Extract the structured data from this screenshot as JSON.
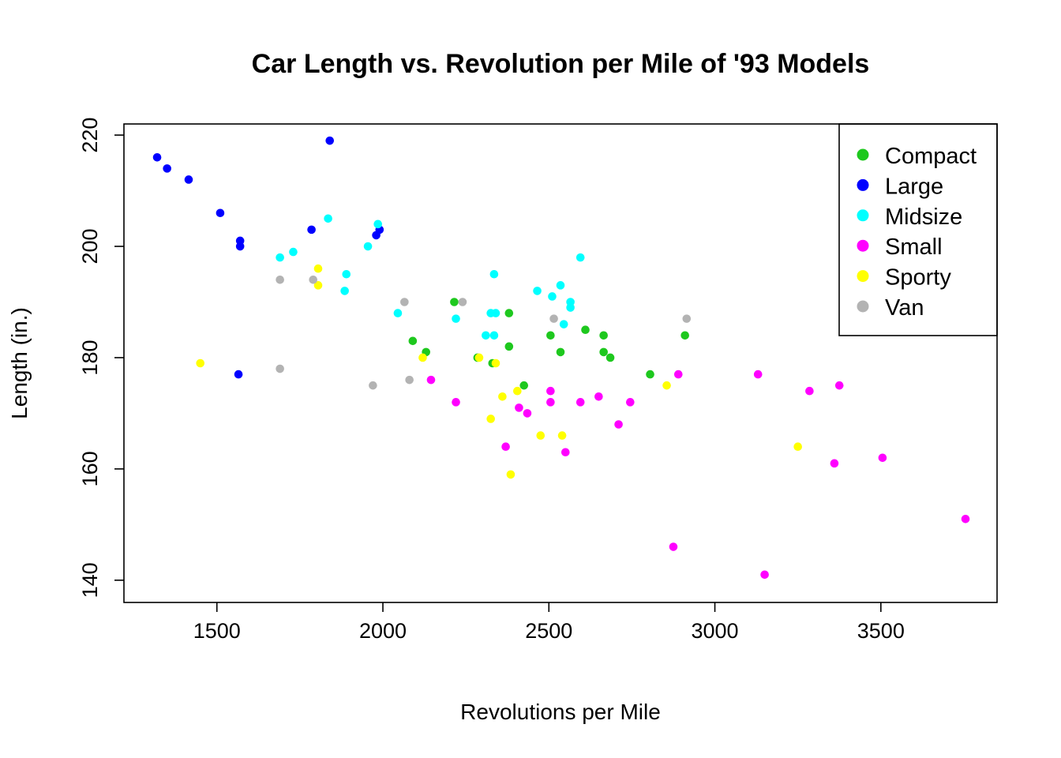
{
  "chart_data": {
    "type": "scatter",
    "title": "Car Length vs. Revolution per Mile of '93 Models",
    "xlabel": "Revolutions per Mile",
    "ylabel": "Length (in.)",
    "xlim": [
      1220,
      3850
    ],
    "ylim": [
      136,
      222
    ],
    "xticks": [
      1500,
      2000,
      2500,
      3000,
      3500
    ],
    "yticks": [
      140,
      160,
      180,
      200,
      220
    ],
    "grid": false,
    "legend_position": "top-right",
    "series": [
      {
        "name": "Compact",
        "color": "#1ec81e",
        "points": [
          [
            2090,
            183
          ],
          [
            2130,
            181
          ],
          [
            2215,
            190
          ],
          [
            2285,
            180
          ],
          [
            2330,
            179
          ],
          [
            2380,
            188
          ],
          [
            2380,
            182
          ],
          [
            2425,
            175
          ],
          [
            2505,
            184
          ],
          [
            2535,
            181
          ],
          [
            2610,
            185
          ],
          [
            2665,
            184
          ],
          [
            2665,
            181
          ],
          [
            2685,
            180
          ],
          [
            2805,
            177
          ],
          [
            2910,
            184
          ]
        ]
      },
      {
        "name": "Large",
        "color": "#0000ff",
        "points": [
          [
            1320,
            216
          ],
          [
            1350,
            214
          ],
          [
            1415,
            212
          ],
          [
            1510,
            206
          ],
          [
            1570,
            201
          ],
          [
            1570,
            200
          ],
          [
            1565,
            177
          ],
          [
            1785,
            203
          ],
          [
            1840,
            219
          ],
          [
            1980,
            202
          ],
          [
            1990,
            203
          ]
        ]
      },
      {
        "name": "Midsize",
        "color": "#00ffff",
        "points": [
          [
            1690,
            198
          ],
          [
            1730,
            199
          ],
          [
            1835,
            205
          ],
          [
            1885,
            192
          ],
          [
            1890,
            195
          ],
          [
            1955,
            200
          ],
          [
            1985,
            204
          ],
          [
            2045,
            188
          ],
          [
            2220,
            187
          ],
          [
            2310,
            184
          ],
          [
            2325,
            188
          ],
          [
            2335,
            184
          ],
          [
            2340,
            188
          ],
          [
            2335,
            195
          ],
          [
            2465,
            192
          ],
          [
            2510,
            191
          ],
          [
            2535,
            193
          ],
          [
            2545,
            186
          ],
          [
            2565,
            190
          ],
          [
            2565,
            189
          ],
          [
            2595,
            198
          ]
        ]
      },
      {
        "name": "Small",
        "color": "#ff00ff",
        "points": [
          [
            2145,
            176
          ],
          [
            2220,
            172
          ],
          [
            2370,
            164
          ],
          [
            2410,
            171
          ],
          [
            2435,
            170
          ],
          [
            2505,
            174
          ],
          [
            2505,
            172
          ],
          [
            2550,
            163
          ],
          [
            2595,
            172
          ],
          [
            2650,
            173
          ],
          [
            2710,
            168
          ],
          [
            2745,
            172
          ],
          [
            2875,
            146
          ],
          [
            2890,
            177
          ],
          [
            3130,
            177
          ],
          [
            3150,
            141
          ],
          [
            3285,
            174
          ],
          [
            3360,
            161
          ],
          [
            3375,
            175
          ],
          [
            3505,
            162
          ],
          [
            3755,
            151
          ]
        ]
      },
      {
        "name": "Sporty",
        "color": "#ffff00",
        "points": [
          [
            1450,
            179
          ],
          [
            1805,
            196
          ],
          [
            1805,
            193
          ],
          [
            2120,
            180
          ],
          [
            2290,
            180
          ],
          [
            2325,
            169
          ],
          [
            2340,
            179
          ],
          [
            2360,
            173
          ],
          [
            2385,
            159
          ],
          [
            2405,
            174
          ],
          [
            2475,
            166
          ],
          [
            2540,
            166
          ],
          [
            2855,
            175
          ],
          [
            3250,
            164
          ]
        ]
      },
      {
        "name": "Van",
        "color": "#b3b3b3",
        "points": [
          [
            1690,
            194
          ],
          [
            1690,
            178
          ],
          [
            1790,
            194
          ],
          [
            1970,
            175
          ],
          [
            2065,
            190
          ],
          [
            2080,
            176
          ],
          [
            2240,
            190
          ],
          [
            2515,
            187
          ],
          [
            2915,
            187
          ]
        ]
      }
    ]
  }
}
